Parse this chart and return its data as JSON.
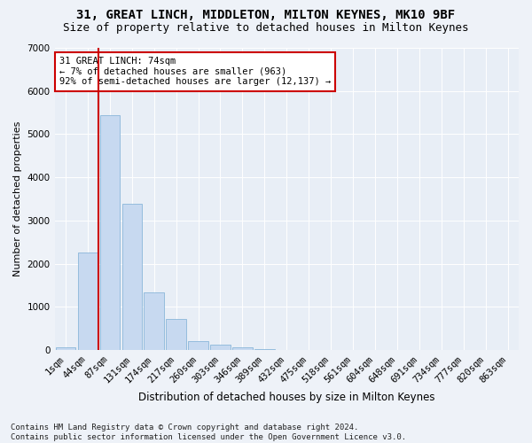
{
  "title1": "31, GREAT LINCH, MIDDLETON, MILTON KEYNES, MK10 9BF",
  "title2": "Size of property relative to detached houses in Milton Keynes",
  "xlabel": "Distribution of detached houses by size in Milton Keynes",
  "ylabel": "Number of detached properties",
  "categories": [
    "1sqm",
    "44sqm",
    "87sqm",
    "131sqm",
    "174sqm",
    "217sqm",
    "260sqm",
    "303sqm",
    "346sqm",
    "389sqm",
    "432sqm",
    "475sqm",
    "518sqm",
    "561sqm",
    "604sqm",
    "648sqm",
    "691sqm",
    "734sqm",
    "777sqm",
    "820sqm",
    "863sqm"
  ],
  "values": [
    60,
    2260,
    5450,
    3380,
    1340,
    730,
    200,
    120,
    75,
    30,
    10,
    5,
    2,
    1,
    0,
    0,
    0,
    0,
    0,
    0,
    0
  ],
  "bar_color": "#c7d9f0",
  "bar_edgecolor": "#7aadd4",
  "vline_x_index": 1.5,
  "vline_color": "#cc0000",
  "annotation_text": "31 GREAT LINCH: 74sqm\n← 7% of detached houses are smaller (963)\n92% of semi-detached houses are larger (12,137) →",
  "annotation_box_color": "#ffffff",
  "annotation_box_edgecolor": "#cc0000",
  "ylim": [
    0,
    7000
  ],
  "yticks": [
    0,
    1000,
    2000,
    3000,
    4000,
    5000,
    6000,
    7000
  ],
  "footnote": "Contains HM Land Registry data © Crown copyright and database right 2024.\nContains public sector information licensed under the Open Government Licence v3.0.",
  "background_color": "#eef2f8",
  "plot_background": "#e8eef6",
  "grid_color": "#ffffff",
  "title1_fontsize": 10,
  "title2_fontsize": 9,
  "xlabel_fontsize": 8.5,
  "ylabel_fontsize": 8,
  "tick_fontsize": 7.5,
  "annotation_fontsize": 7.5,
  "footnote_fontsize": 6.5
}
